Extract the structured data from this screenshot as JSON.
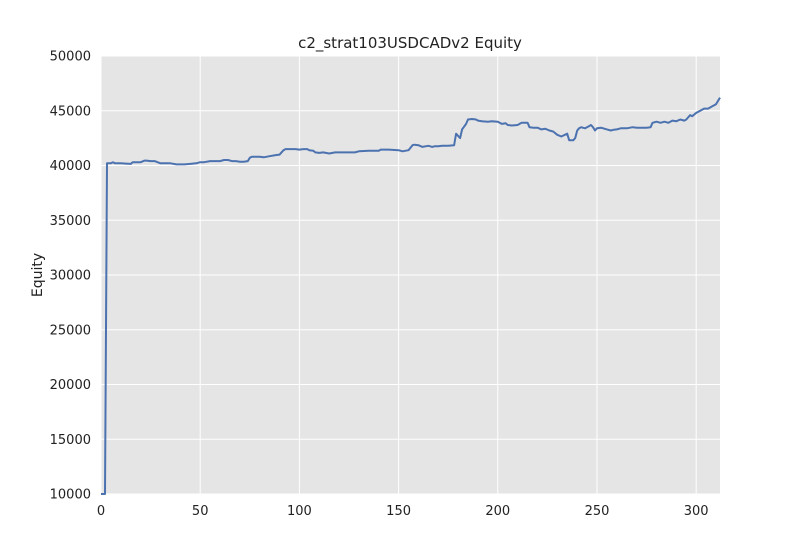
{
  "chart_data": {
    "type": "line",
    "title": "c2_strat103USDCADv2 Equity",
    "xlabel": "",
    "ylabel": "Equity",
    "xlim": [
      0,
      312
    ],
    "ylim": [
      10000,
      50000
    ],
    "xticks": [
      0,
      50,
      100,
      150,
      200,
      250,
      300
    ],
    "yticks": [
      10000,
      15000,
      20000,
      25000,
      30000,
      35000,
      40000,
      45000,
      50000
    ],
    "grid": true,
    "legend": "none",
    "colors": {
      "background": "#e5e5e5",
      "grid": "#ffffff",
      "line": "#4c72b0"
    },
    "series": [
      {
        "x": [
          0,
          2,
          3,
          5,
          6,
          7,
          10,
          15,
          16,
          18,
          20,
          22,
          23,
          25,
          27,
          30,
          32,
          35,
          38,
          40,
          42,
          45,
          48,
          50,
          52,
          55,
          58,
          60,
          62,
          64,
          66,
          68,
          70,
          72,
          74,
          75,
          76,
          78,
          80,
          82,
          85,
          88,
          90,
          92,
          93,
          95,
          98,
          100,
          102,
          104,
          105,
          107,
          108,
          110,
          112,
          115,
          118,
          120,
          122,
          125,
          128,
          130,
          135,
          140,
          141,
          143,
          145,
          150,
          152,
          155,
          157,
          158,
          160,
          162,
          165,
          167,
          168,
          170,
          172,
          175,
          178,
          179,
          181,
          182,
          184,
          185,
          187,
          189,
          190,
          192,
          195,
          197,
          200,
          202,
          204,
          205,
          207,
          210,
          212,
          215,
          216,
          218,
          220,
          222,
          224,
          226,
          228,
          230,
          232,
          235,
          236,
          238,
          239,
          240,
          241,
          242,
          244,
          246,
          247,
          248,
          249,
          250,
          252,
          255,
          257,
          258,
          260,
          262,
          265,
          268,
          270,
          275,
          277,
          278,
          280,
          282,
          284,
          286,
          288,
          290,
          292,
          294,
          295,
          297,
          298,
          300,
          302,
          304,
          306,
          308,
          310,
          312
        ],
        "y": [
          10000,
          10000,
          40200,
          40200,
          40300,
          40200,
          40200,
          40150,
          40300,
          40300,
          40300,
          40450,
          40450,
          40400,
          40400,
          40200,
          40200,
          40200,
          40100,
          40100,
          40100,
          40150,
          40200,
          40300,
          40300,
          40400,
          40400,
          40400,
          40500,
          40500,
          40400,
          40400,
          40350,
          40350,
          40400,
          40700,
          40800,
          40800,
          40800,
          40750,
          40850,
          40950,
          41000,
          41400,
          41500,
          41500,
          41500,
          41450,
          41500,
          41500,
          41400,
          41350,
          41200,
          41150,
          41200,
          41100,
          41200,
          41200,
          41200,
          41200,
          41200,
          41300,
          41350,
          41350,
          41450,
          41450,
          41450,
          41400,
          41300,
          41400,
          41850,
          41900,
          41850,
          41700,
          41800,
          41700,
          41750,
          41750,
          41800,
          41800,
          41850,
          42900,
          42500,
          43300,
          43800,
          44200,
          44250,
          44200,
          44100,
          44050,
          44000,
          44050,
          44000,
          43800,
          43850,
          43700,
          43650,
          43700,
          43900,
          43900,
          43500,
          43450,
          43450,
          43300,
          43350,
          43200,
          43100,
          42800,
          42650,
          42900,
          42300,
          42300,
          42500,
          43200,
          43400,
          43500,
          43400,
          43600,
          43700,
          43500,
          43200,
          43400,
          43450,
          43300,
          43200,
          43250,
          43300,
          43400,
          43400,
          43500,
          43450,
          43450,
          43500,
          43900,
          44000,
          43900,
          44000,
          43900,
          44100,
          44050,
          44200,
          44100,
          44200,
          44600,
          44500,
          44800,
          45000,
          45200,
          45200,
          45400,
          45600,
          46200
        ]
      }
    ]
  }
}
